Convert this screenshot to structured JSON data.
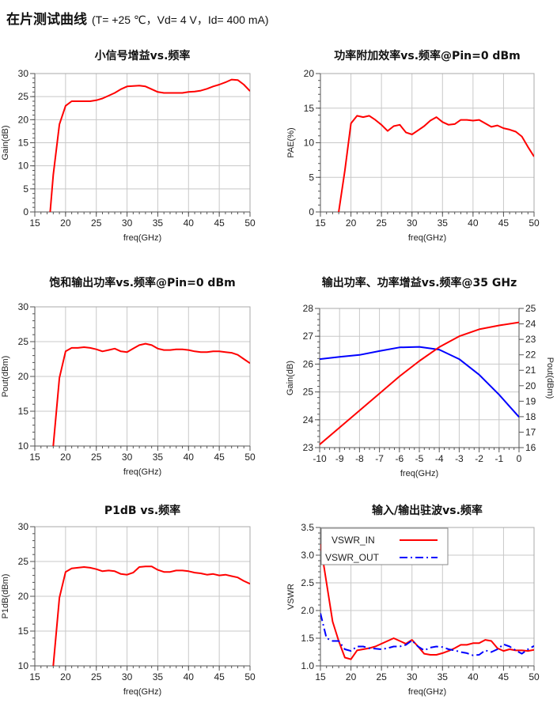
{
  "page": {
    "title": "在片测试曲线",
    "conditions": "(T= +25 ℃，Vd= 4 V，Id= 400 mA)"
  },
  "colors": {
    "red": "#ff0000",
    "blue": "#0000ff",
    "grid": "#c8c8c8",
    "axis": "#555555"
  },
  "chart_data": [
    {
      "type": "line",
      "title": "小信号增益vs.频率",
      "xlabel": "freq(GHz)",
      "ylabel": "Gain(dB)",
      "xlim": [
        15,
        50
      ],
      "xticks": [
        15,
        20,
        25,
        30,
        35,
        40,
        45,
        50
      ],
      "ylim": [
        0,
        30
      ],
      "yticks": [
        0,
        5,
        10,
        15,
        20,
        25,
        30
      ],
      "grid": true,
      "series": [
        {
          "name": "Gain",
          "color": "#ff0000",
          "x": [
            17.5,
            18,
            19,
            20,
            21,
            22,
            23,
            24,
            25,
            26,
            27,
            28,
            29,
            30,
            31,
            32,
            33,
            34,
            35,
            36,
            37,
            38,
            39,
            40,
            41,
            42,
            43,
            44,
            45,
            46,
            47,
            48,
            49,
            50
          ],
          "y": [
            0,
            8,
            19,
            23,
            24,
            24,
            24,
            24,
            24.2,
            24.6,
            25.2,
            25.8,
            26.6,
            27.2,
            27.3,
            27.4,
            27.2,
            26.6,
            26,
            25.8,
            25.8,
            25.8,
            25.8,
            26,
            26.1,
            26.3,
            26.7,
            27.2,
            27.6,
            28.1,
            28.7,
            28.6,
            27.6,
            26.2
          ]
        }
      ]
    },
    {
      "type": "line",
      "title": "功率附加效率vs.频率@Pin=0 dBm",
      "xlabel": "freq(GHz)",
      "ylabel": "PAE(%)",
      "xlim": [
        15,
        50
      ],
      "xticks": [
        15,
        20,
        25,
        30,
        35,
        40,
        45,
        50
      ],
      "ylim": [
        0,
        20
      ],
      "yticks": [
        0,
        5,
        10,
        15,
        20
      ],
      "grid": true,
      "series": [
        {
          "name": "PAE",
          "color": "#ff0000",
          "x": [
            18,
            19,
            20,
            21,
            22,
            23,
            24,
            25,
            26,
            27,
            28,
            29,
            30,
            31,
            32,
            33,
            34,
            35,
            36,
            37,
            38,
            39,
            40,
            41,
            42,
            43,
            44,
            45,
            46,
            47,
            48,
            49,
            50
          ],
          "y": [
            0,
            6,
            12.8,
            13.9,
            13.7,
            13.9,
            13.3,
            12.6,
            11.7,
            12.4,
            12.6,
            11.5,
            11.2,
            11.8,
            12.4,
            13.2,
            13.7,
            13,
            12.6,
            12.7,
            13.3,
            13.3,
            13.2,
            13.3,
            12.8,
            12.3,
            12.5,
            12.1,
            11.9,
            11.6,
            10.9,
            9.4,
            8
          ]
        }
      ]
    },
    {
      "type": "line",
      "title": "饱和输出功率vs.频率@Pin=0 dBm",
      "xlabel": "freq(GHz)",
      "ylabel": "Pout(dBm)",
      "xlim": [
        15,
        50
      ],
      "xticks": [
        15,
        20,
        25,
        30,
        35,
        40,
        45,
        50
      ],
      "ylim": [
        10,
        30
      ],
      "yticks": [
        10,
        15,
        20,
        25,
        30
      ],
      "grid": true,
      "series": [
        {
          "name": "Pout",
          "color": "#ff0000",
          "x": [
            18,
            19,
            20,
            21,
            22,
            23,
            24,
            25,
            26,
            27,
            28,
            29,
            30,
            31,
            32,
            33,
            34,
            35,
            36,
            37,
            38,
            39,
            40,
            41,
            42,
            43,
            44,
            45,
            46,
            47,
            48,
            49,
            50
          ],
          "y": [
            10,
            19.8,
            23.6,
            24.1,
            24.1,
            24.2,
            24.1,
            23.9,
            23.6,
            23.8,
            24,
            23.6,
            23.5,
            24,
            24.5,
            24.7,
            24.5,
            24,
            23.8,
            23.8,
            23.9,
            23.9,
            23.8,
            23.6,
            23.5,
            23.5,
            23.6,
            23.6,
            23.5,
            23.4,
            23.1,
            22.5,
            21.9
          ]
        }
      ]
    },
    {
      "type": "line",
      "title": "输出功率、功率增益vs.频率@35 GHz",
      "xlabel": "freq(GHz)",
      "ylabel": "Gain(dB)",
      "y2label": "Pout(dBm)",
      "xlim": [
        -10,
        0
      ],
      "xticks": [
        -10,
        -9,
        -8,
        -7,
        -6,
        -5,
        -4,
        -3,
        -2,
        -1,
        0
      ],
      "ylim": [
        23,
        28
      ],
      "yticks": [
        23,
        24,
        25,
        26,
        27,
        28
      ],
      "y2lim": [
        16,
        25
      ],
      "y2ticks": [
        16,
        17,
        18,
        19,
        20,
        21,
        22,
        23,
        24,
        25
      ],
      "grid": true,
      "series": [
        {
          "name": "Gain",
          "axis": "left",
          "color": "#0000ff",
          "x": [
            -10,
            -9,
            -8,
            -7,
            -6,
            -5,
            -4,
            -3,
            -2,
            -1,
            0
          ],
          "y": [
            26.18,
            26.26,
            26.33,
            26.47,
            26.6,
            26.62,
            26.52,
            26.18,
            25.62,
            24.9,
            24.1
          ]
        },
        {
          "name": "Pout",
          "axis": "right",
          "color": "#ff0000",
          "x": [
            -10,
            -9,
            -8,
            -7,
            -6,
            -5,
            -4,
            -3,
            -2,
            -1,
            0
          ],
          "y": [
            16.2,
            17.3,
            18.4,
            19.5,
            20.6,
            21.6,
            22.5,
            23.2,
            23.65,
            23.9,
            24.1
          ]
        }
      ]
    },
    {
      "type": "line",
      "title": "P1dB vs.频率",
      "xlabel": "freq(GHz)",
      "ylabel": "P1dB(dBm)",
      "xlim": [
        15,
        50
      ],
      "xticks": [
        15,
        20,
        25,
        30,
        35,
        40,
        45,
        50
      ],
      "ylim": [
        10,
        30
      ],
      "yticks": [
        10,
        15,
        20,
        25,
        30
      ],
      "grid": true,
      "series": [
        {
          "name": "P1dB",
          "color": "#ff0000",
          "x": [
            18,
            19,
            20,
            21,
            22,
            23,
            24,
            25,
            26,
            27,
            28,
            29,
            30,
            31,
            32,
            33,
            34,
            35,
            36,
            37,
            38,
            39,
            40,
            41,
            42,
            43,
            44,
            45,
            46,
            47,
            48,
            49,
            50
          ],
          "y": [
            10,
            19.8,
            23.5,
            24,
            24.1,
            24.2,
            24.1,
            23.9,
            23.6,
            23.7,
            23.6,
            23.2,
            23.1,
            23.4,
            24.2,
            24.3,
            24.3,
            23.8,
            23.5,
            23.5,
            23.7,
            23.7,
            23.6,
            23.4,
            23.3,
            23.1,
            23.2,
            23,
            23.1,
            22.9,
            22.7,
            22.2,
            21.8
          ]
        }
      ]
    },
    {
      "type": "line",
      "title": "输入/输出驻波vs.频率",
      "xlabel": "freq(GHz)",
      "ylabel": "VSWR",
      "xlim": [
        15,
        50
      ],
      "xticks": [
        15,
        20,
        25,
        30,
        35,
        40,
        45,
        50
      ],
      "ylim": [
        1.0,
        3.5
      ],
      "yticks": [
        1.0,
        1.5,
        2.0,
        2.5,
        3.0,
        3.5
      ],
      "yfmt": 1,
      "grid": true,
      "legend": "top-left",
      "series": [
        {
          "name": "VSWR_IN",
          "color": "#ff0000",
          "dash": "solid",
          "x": [
            15,
            16,
            17,
            18,
            19,
            20,
            21,
            22,
            23,
            24,
            25,
            26,
            27,
            28,
            29,
            30,
            31,
            32,
            33,
            34,
            35,
            36,
            37,
            38,
            39,
            40,
            41,
            42,
            43,
            44,
            45,
            46,
            47,
            48,
            49,
            50
          ],
          "y": [
            3.2,
            2.5,
            1.8,
            1.45,
            1.15,
            1.12,
            1.28,
            1.3,
            1.32,
            1.35,
            1.4,
            1.45,
            1.5,
            1.45,
            1.4,
            1.47,
            1.35,
            1.22,
            1.2,
            1.2,
            1.23,
            1.27,
            1.32,
            1.38,
            1.38,
            1.41,
            1.41,
            1.47,
            1.45,
            1.32,
            1.27,
            1.3,
            1.28,
            1.28,
            1.27,
            1.29
          ]
        },
        {
          "name": "VSWR_OUT",
          "color": "#0000ff",
          "dash": "dashdot",
          "x": [
            15,
            16,
            17,
            18,
            19,
            20,
            21,
            22,
            23,
            24,
            25,
            26,
            27,
            28,
            29,
            30,
            31,
            32,
            33,
            34,
            35,
            36,
            37,
            38,
            39,
            40,
            41,
            42,
            43,
            44,
            45,
            46,
            47,
            48,
            49,
            50
          ],
          "y": [
            1.95,
            1.5,
            1.45,
            1.45,
            1.3,
            1.27,
            1.35,
            1.35,
            1.32,
            1.31,
            1.3,
            1.32,
            1.35,
            1.35,
            1.38,
            1.46,
            1.35,
            1.28,
            1.33,
            1.35,
            1.34,
            1.3,
            1.28,
            1.25,
            1.23,
            1.19,
            1.2,
            1.28,
            1.25,
            1.3,
            1.39,
            1.35,
            1.28,
            1.22,
            1.3,
            1.36
          ]
        }
      ]
    }
  ]
}
